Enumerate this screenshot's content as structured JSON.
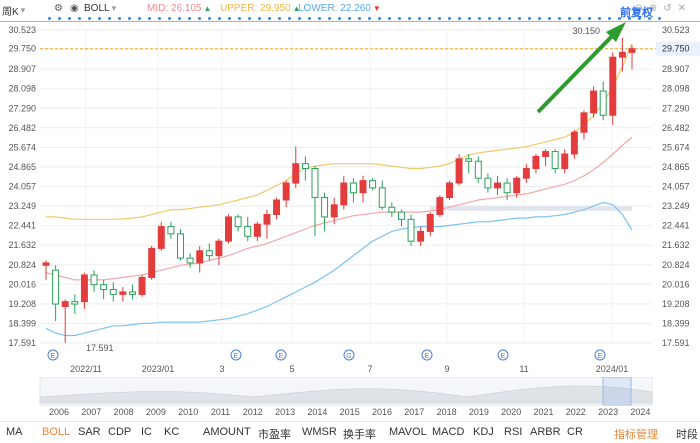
{
  "toolbar": {
    "period": "周K",
    "indicator": "BOLL",
    "mid_label": "MID: 26.105",
    "upper_label": "UPPER: 29.950",
    "lower_label": "LOWER: 22.260",
    "mid_trend": "up",
    "upper_trend": "up",
    "lower_trend": "down"
  },
  "annotation": {
    "restore_label": "前复权"
  },
  "colors": {
    "up": "#e23c3c",
    "down": "#2ca05a",
    "mid": "#f5a7a7",
    "upper": "#f2c86a",
    "lower": "#7cc3ee",
    "accent": "#f5a623",
    "highlight": "#2b6ef0"
  },
  "chart_data": {
    "type": "candlestick",
    "y_ticks": [
      "30.523",
      "29.750",
      "28.907",
      "28.098",
      "27.290",
      "26.482",
      "25.674",
      "24.865",
      "24.057",
      "23.249",
      "22.441",
      "21.632",
      "20.824",
      "20.016",
      "19.208",
      "18.399",
      "17.591"
    ],
    "ylim": [
      17.591,
      30.523
    ],
    "x_labels": [
      "2022/11",
      "2023/01",
      "3",
      "5",
      "7",
      "9",
      "11",
      "2024/01"
    ],
    "current_price_label": "29.750",
    "current_price": 29.75,
    "high_marker": "30.150",
    "low_marker": "17.591",
    "event_markers": [
      "E",
      "E",
      "E",
      "G",
      "E",
      "E",
      "E"
    ],
    "candles": [
      [
        20.8,
        21.0,
        20.2,
        20.9
      ],
      [
        20.6,
        20.8,
        18.5,
        19.2
      ],
      [
        19.1,
        19.4,
        17.6,
        19.3
      ],
      [
        19.3,
        19.6,
        18.8,
        19.2
      ],
      [
        19.3,
        20.5,
        19.0,
        20.4
      ],
      [
        20.4,
        20.6,
        19.7,
        20.0
      ],
      [
        20.0,
        20.2,
        19.4,
        19.8
      ],
      [
        19.8,
        20.1,
        19.3,
        19.6
      ],
      [
        19.6,
        19.9,
        19.3,
        19.7
      ],
      [
        19.7,
        20.0,
        19.4,
        19.6
      ],
      [
        19.6,
        20.4,
        19.5,
        20.3
      ],
      [
        20.3,
        21.6,
        20.2,
        21.5
      ],
      [
        21.5,
        22.6,
        21.4,
        22.4
      ],
      [
        22.4,
        22.6,
        21.9,
        22.1
      ],
      [
        22.1,
        22.3,
        21.0,
        21.1
      ],
      [
        21.1,
        21.3,
        20.7,
        20.9
      ],
      [
        20.9,
        21.6,
        20.5,
        21.4
      ],
      [
        21.4,
        21.7,
        21.0,
        21.2
      ],
      [
        21.2,
        21.9,
        20.8,
        21.8
      ],
      [
        21.8,
        22.9,
        21.7,
        22.8
      ],
      [
        22.8,
        22.9,
        22.2,
        22.4
      ],
      [
        22.4,
        22.8,
        21.8,
        22.0
      ],
      [
        22.0,
        22.6,
        21.8,
        22.5
      ],
      [
        22.5,
        23.1,
        21.9,
        22.9
      ],
      [
        22.9,
        23.6,
        22.7,
        23.5
      ],
      [
        23.5,
        24.3,
        23.2,
        24.2
      ],
      [
        24.2,
        25.7,
        24.0,
        25.0
      ],
      [
        25.0,
        25.3,
        24.3,
        24.8
      ],
      [
        24.8,
        24.9,
        22.0,
        23.6
      ],
      [
        23.6,
        23.8,
        22.2,
        22.8
      ],
      [
        22.8,
        23.6,
        22.5,
        23.3
      ],
      [
        23.3,
        24.5,
        23.1,
        24.2
      ],
      [
        24.2,
        24.4,
        23.4,
        23.8
      ],
      [
        23.8,
        24.5,
        23.4,
        24.3
      ],
      [
        24.3,
        24.4,
        23.9,
        24.0
      ],
      [
        24.0,
        24.3,
        23.1,
        23.2
      ],
      [
        23.2,
        23.4,
        22.8,
        23.0
      ],
      [
        23.0,
        23.1,
        22.4,
        22.7
      ],
      [
        22.7,
        22.9,
        21.6,
        21.8
      ],
      [
        21.8,
        22.4,
        21.6,
        22.2
      ],
      [
        22.2,
        23.0,
        22.0,
        22.9
      ],
      [
        22.9,
        23.7,
        22.8,
        23.6
      ],
      [
        23.6,
        24.3,
        23.5,
        24.2
      ],
      [
        24.2,
        25.4,
        24.1,
        25.2
      ],
      [
        25.2,
        25.4,
        24.6,
        25.1
      ],
      [
        25.1,
        25.3,
        24.2,
        24.4
      ],
      [
        24.4,
        24.6,
        23.8,
        24.0
      ],
      [
        24.0,
        24.5,
        23.7,
        24.2
      ],
      [
        24.2,
        24.4,
        23.5,
        23.8
      ],
      [
        23.8,
        24.5,
        23.6,
        24.4
      ],
      [
        24.4,
        25.0,
        24.2,
        24.8
      ],
      [
        24.8,
        25.4,
        24.6,
        25.3
      ],
      [
        25.3,
        25.6,
        24.9,
        25.5
      ],
      [
        25.5,
        25.6,
        24.6,
        24.8
      ],
      [
        24.8,
        25.6,
        24.6,
        25.4
      ],
      [
        25.4,
        26.4,
        25.2,
        26.3
      ],
      [
        26.3,
        27.2,
        26.0,
        27.1
      ],
      [
        27.1,
        28.2,
        26.9,
        28.0
      ],
      [
        28.0,
        28.4,
        26.8,
        27.0
      ],
      [
        27.0,
        29.6,
        26.6,
        29.4
      ],
      [
        29.4,
        30.2,
        28.8,
        29.6
      ],
      [
        29.6,
        29.9,
        28.9,
        29.75
      ]
    ],
    "bands": {
      "upper": [
        22.8,
        22.8,
        22.75,
        22.7,
        22.7,
        22.7,
        22.7,
        22.7,
        22.72,
        22.75,
        22.8,
        22.9,
        23.0,
        23.1,
        23.1,
        23.15,
        23.2,
        23.25,
        23.3,
        23.4,
        23.5,
        23.6,
        23.7,
        23.9,
        24.1,
        24.3,
        24.6,
        24.8,
        24.9,
        24.95,
        25.0,
        25.0,
        25.0,
        25.0,
        25.0,
        24.95,
        24.9,
        24.85,
        24.8,
        24.8,
        24.85,
        24.9,
        25.0,
        25.2,
        25.35,
        25.45,
        25.5,
        25.55,
        25.6,
        25.65,
        25.7,
        25.8,
        25.9,
        26.0,
        26.1,
        26.3,
        26.6,
        27.0,
        27.5,
        28.2,
        29.0,
        29.95
      ],
      "mid": [
        20.5,
        20.4,
        20.3,
        20.2,
        20.2,
        20.2,
        20.2,
        20.25,
        20.3,
        20.35,
        20.4,
        20.5,
        20.6,
        20.7,
        20.8,
        20.85,
        20.9,
        21.0,
        21.1,
        21.2,
        21.35,
        21.5,
        21.6,
        21.7,
        21.85,
        22.0,
        22.15,
        22.3,
        22.45,
        22.55,
        22.65,
        22.75,
        22.85,
        22.9,
        22.95,
        23.0,
        23.0,
        23.0,
        23.0,
        23.0,
        23.05,
        23.1,
        23.2,
        23.3,
        23.4,
        23.5,
        23.55,
        23.6,
        23.65,
        23.7,
        23.75,
        23.85,
        23.95,
        24.05,
        24.15,
        24.3,
        24.5,
        24.75,
        25.05,
        25.4,
        25.75,
        26.105
      ],
      "lower": [
        18.2,
        18.0,
        17.9,
        17.9,
        18.0,
        18.1,
        18.2,
        18.3,
        18.3,
        18.35,
        18.4,
        18.4,
        18.45,
        18.45,
        18.45,
        18.45,
        18.45,
        18.5,
        18.55,
        18.6,
        18.7,
        18.8,
        18.95,
        19.1,
        19.3,
        19.5,
        19.7,
        19.9,
        20.1,
        20.35,
        20.6,
        20.9,
        21.2,
        21.5,
        21.8,
        22.0,
        22.2,
        22.3,
        22.35,
        22.4,
        22.4,
        22.4,
        22.45,
        22.5,
        22.55,
        22.6,
        22.6,
        22.65,
        22.7,
        22.75,
        22.75,
        22.8,
        22.8,
        22.85,
        22.9,
        23.0,
        23.1,
        23.25,
        23.4,
        23.3,
        22.9,
        22.26
      ]
    },
    "gap_band": [
      23.05,
      23.25
    ]
  },
  "navigator": {
    "years": [
      "2006",
      "2007",
      "2008",
      "2009",
      "2010",
      "2011",
      "2012",
      "2013",
      "2014",
      "2015",
      "2016",
      "2017",
      "2018",
      "2019",
      "2020",
      "2021",
      "2022",
      "2023",
      "2024"
    ]
  },
  "tabs": [
    "MA",
    "BOLL",
    "SAR",
    "CDP",
    "IC",
    "KC",
    "AMOUNT",
    "市盈率",
    "WMSR",
    "换手率",
    "MAVOL",
    "MACD",
    "KDJ",
    "RSI",
    "ARBR",
    "CR",
    "指标管理",
    "时段"
  ],
  "active_tab": "BOLL"
}
